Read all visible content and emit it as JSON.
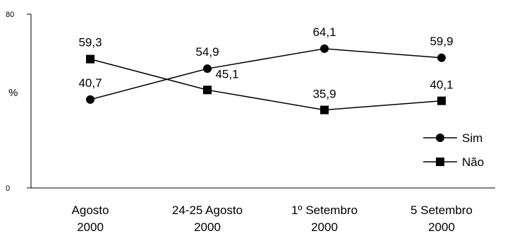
{
  "chart_data": {
    "type": "line",
    "title": "",
    "xlabel": "",
    "ylabel": "%",
    "ylim": [
      0,
      80
    ],
    "y_ticks": [
      "0",
      "80"
    ],
    "grid": false,
    "legend_position": "right",
    "categories": [
      [
        "Agosto",
        "2000"
      ],
      [
        "24-25 Agosto",
        "2000"
      ],
      [
        "1º Setembro",
        "2000"
      ],
      [
        "5 Setembro",
        "2000"
      ]
    ],
    "series": [
      {
        "name": "Sim",
        "marker": "circle",
        "color": "#000000",
        "values": [
          40.7,
          54.9,
          64.1,
          59.9
        ],
        "labels": [
          "40,7",
          "54,9",
          "64,1",
          "59,9"
        ]
      },
      {
        "name": "Não",
        "marker": "square",
        "color": "#000000",
        "values": [
          59.3,
          45.1,
          35.9,
          40.1
        ],
        "labels": [
          "59,3",
          "45,1",
          "35,9",
          "40,1"
        ]
      }
    ]
  }
}
